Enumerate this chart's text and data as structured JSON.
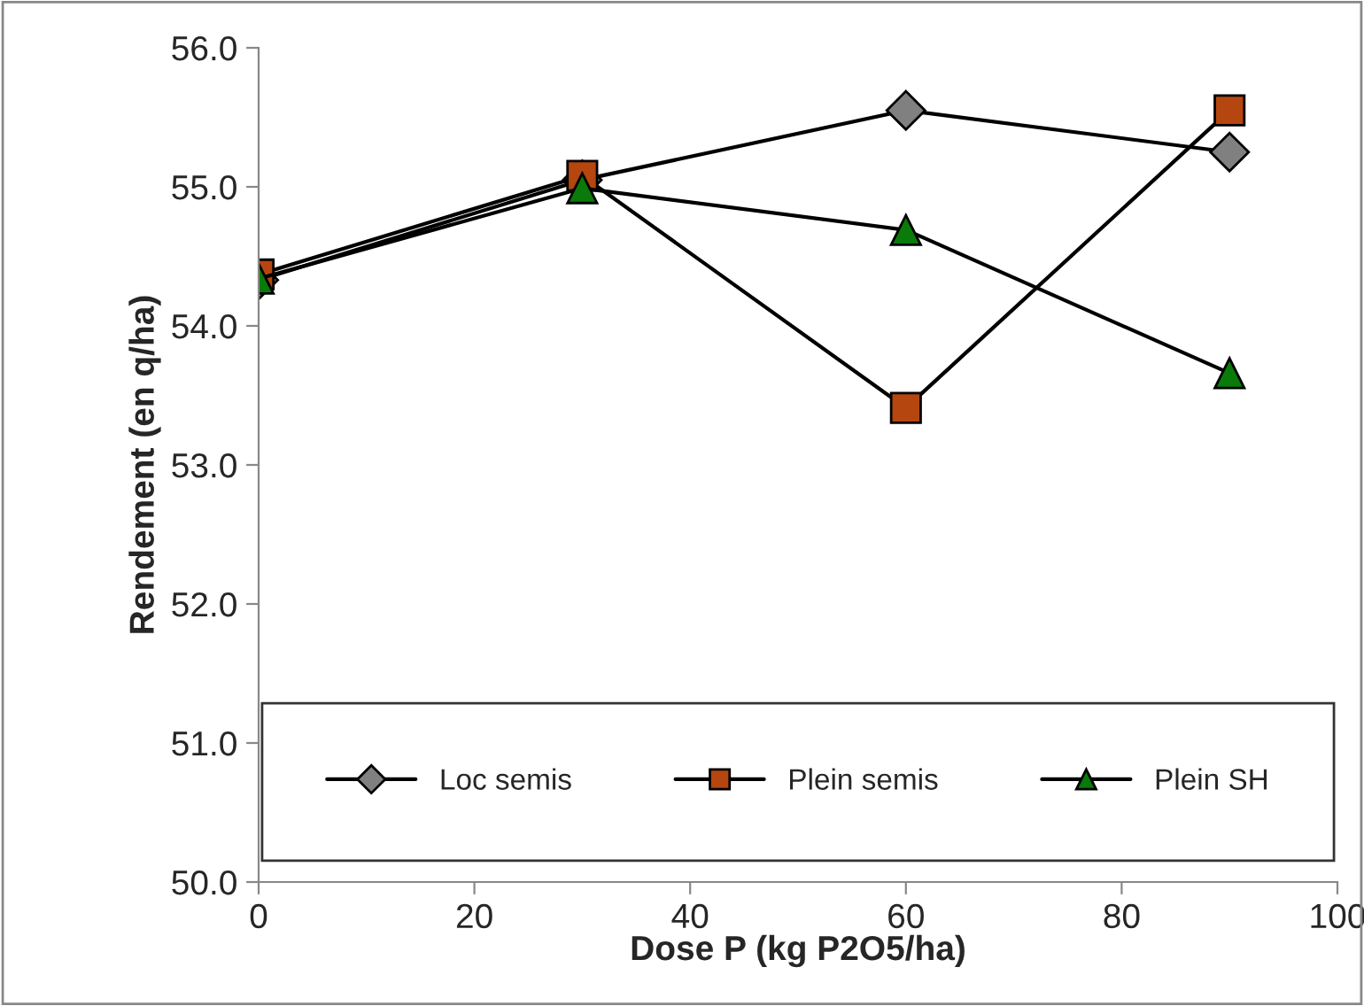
{
  "chart_data": {
    "type": "line",
    "xlabel": "Dose P (kg P2O5/ha)",
    "ylabel": "Rendement (en q/ha)",
    "x": [
      0,
      30,
      60,
      90
    ],
    "series": [
      {
        "name": "Loc semis",
        "color": "#808080",
        "marker": "diamond",
        "values": [
          54.33,
          55.05,
          55.55,
          55.25
        ]
      },
      {
        "name": "Plein semis",
        "color": "#b5460f",
        "marker": "square",
        "values": [
          54.37,
          55.08,
          53.41,
          55.55
        ]
      },
      {
        "name": "Plein SH",
        "color": "#0a7a0a",
        "marker": "triangle",
        "values": [
          54.34,
          54.99,
          54.69,
          53.66
        ]
      }
    ],
    "xlim": [
      0,
      100
    ],
    "xticks": [
      0,
      20,
      40,
      60,
      80,
      100
    ],
    "ylim": [
      50,
      56
    ],
    "yticks": [
      {
        "value": 50,
        "label": "50.0"
      },
      {
        "value": 51,
        "label": "51.0"
      },
      {
        "value": 52,
        "label": "52.0"
      },
      {
        "value": 53,
        "label": "53.0"
      },
      {
        "value": 54,
        "label": "54.0"
      },
      {
        "value": 55,
        "label": "55.0"
      },
      {
        "value": 56,
        "label": "56.0"
      }
    ],
    "grid": false,
    "legend": "bottom",
    "line_style": "solid"
  }
}
